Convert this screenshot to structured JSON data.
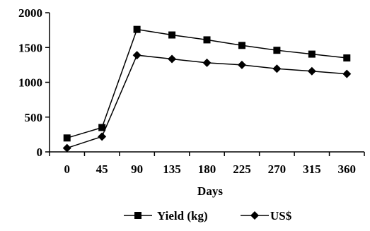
{
  "chart_data": {
    "type": "line",
    "title": "",
    "xlabel": "Days",
    "ylabel": "",
    "x": [
      0,
      45,
      90,
      135,
      180,
      225,
      270,
      315,
      360
    ],
    "x_tick_labels": [
      "0",
      "45",
      "90",
      "135",
      "180",
      "225",
      "270",
      "315",
      "360"
    ],
    "ylim": [
      0,
      2000
    ],
    "y_ticks": [
      0,
      500,
      1000,
      1500,
      2000
    ],
    "y_tick_labels": [
      "0",
      "500",
      "1000",
      "1500",
      "2000"
    ],
    "grid": false,
    "legend_position": "bottom",
    "series": [
      {
        "name": "Yield (kg)",
        "marker": "square",
        "color": "#000000",
        "values": [
          200,
          350,
          1760,
          1680,
          1610,
          1530,
          1460,
          1405,
          1350
        ]
      },
      {
        "name": "US$",
        "marker": "diamond",
        "color": "#000000",
        "values": [
          55,
          220,
          1390,
          1335,
          1280,
          1250,
          1195,
          1160,
          1120
        ]
      }
    ]
  }
}
